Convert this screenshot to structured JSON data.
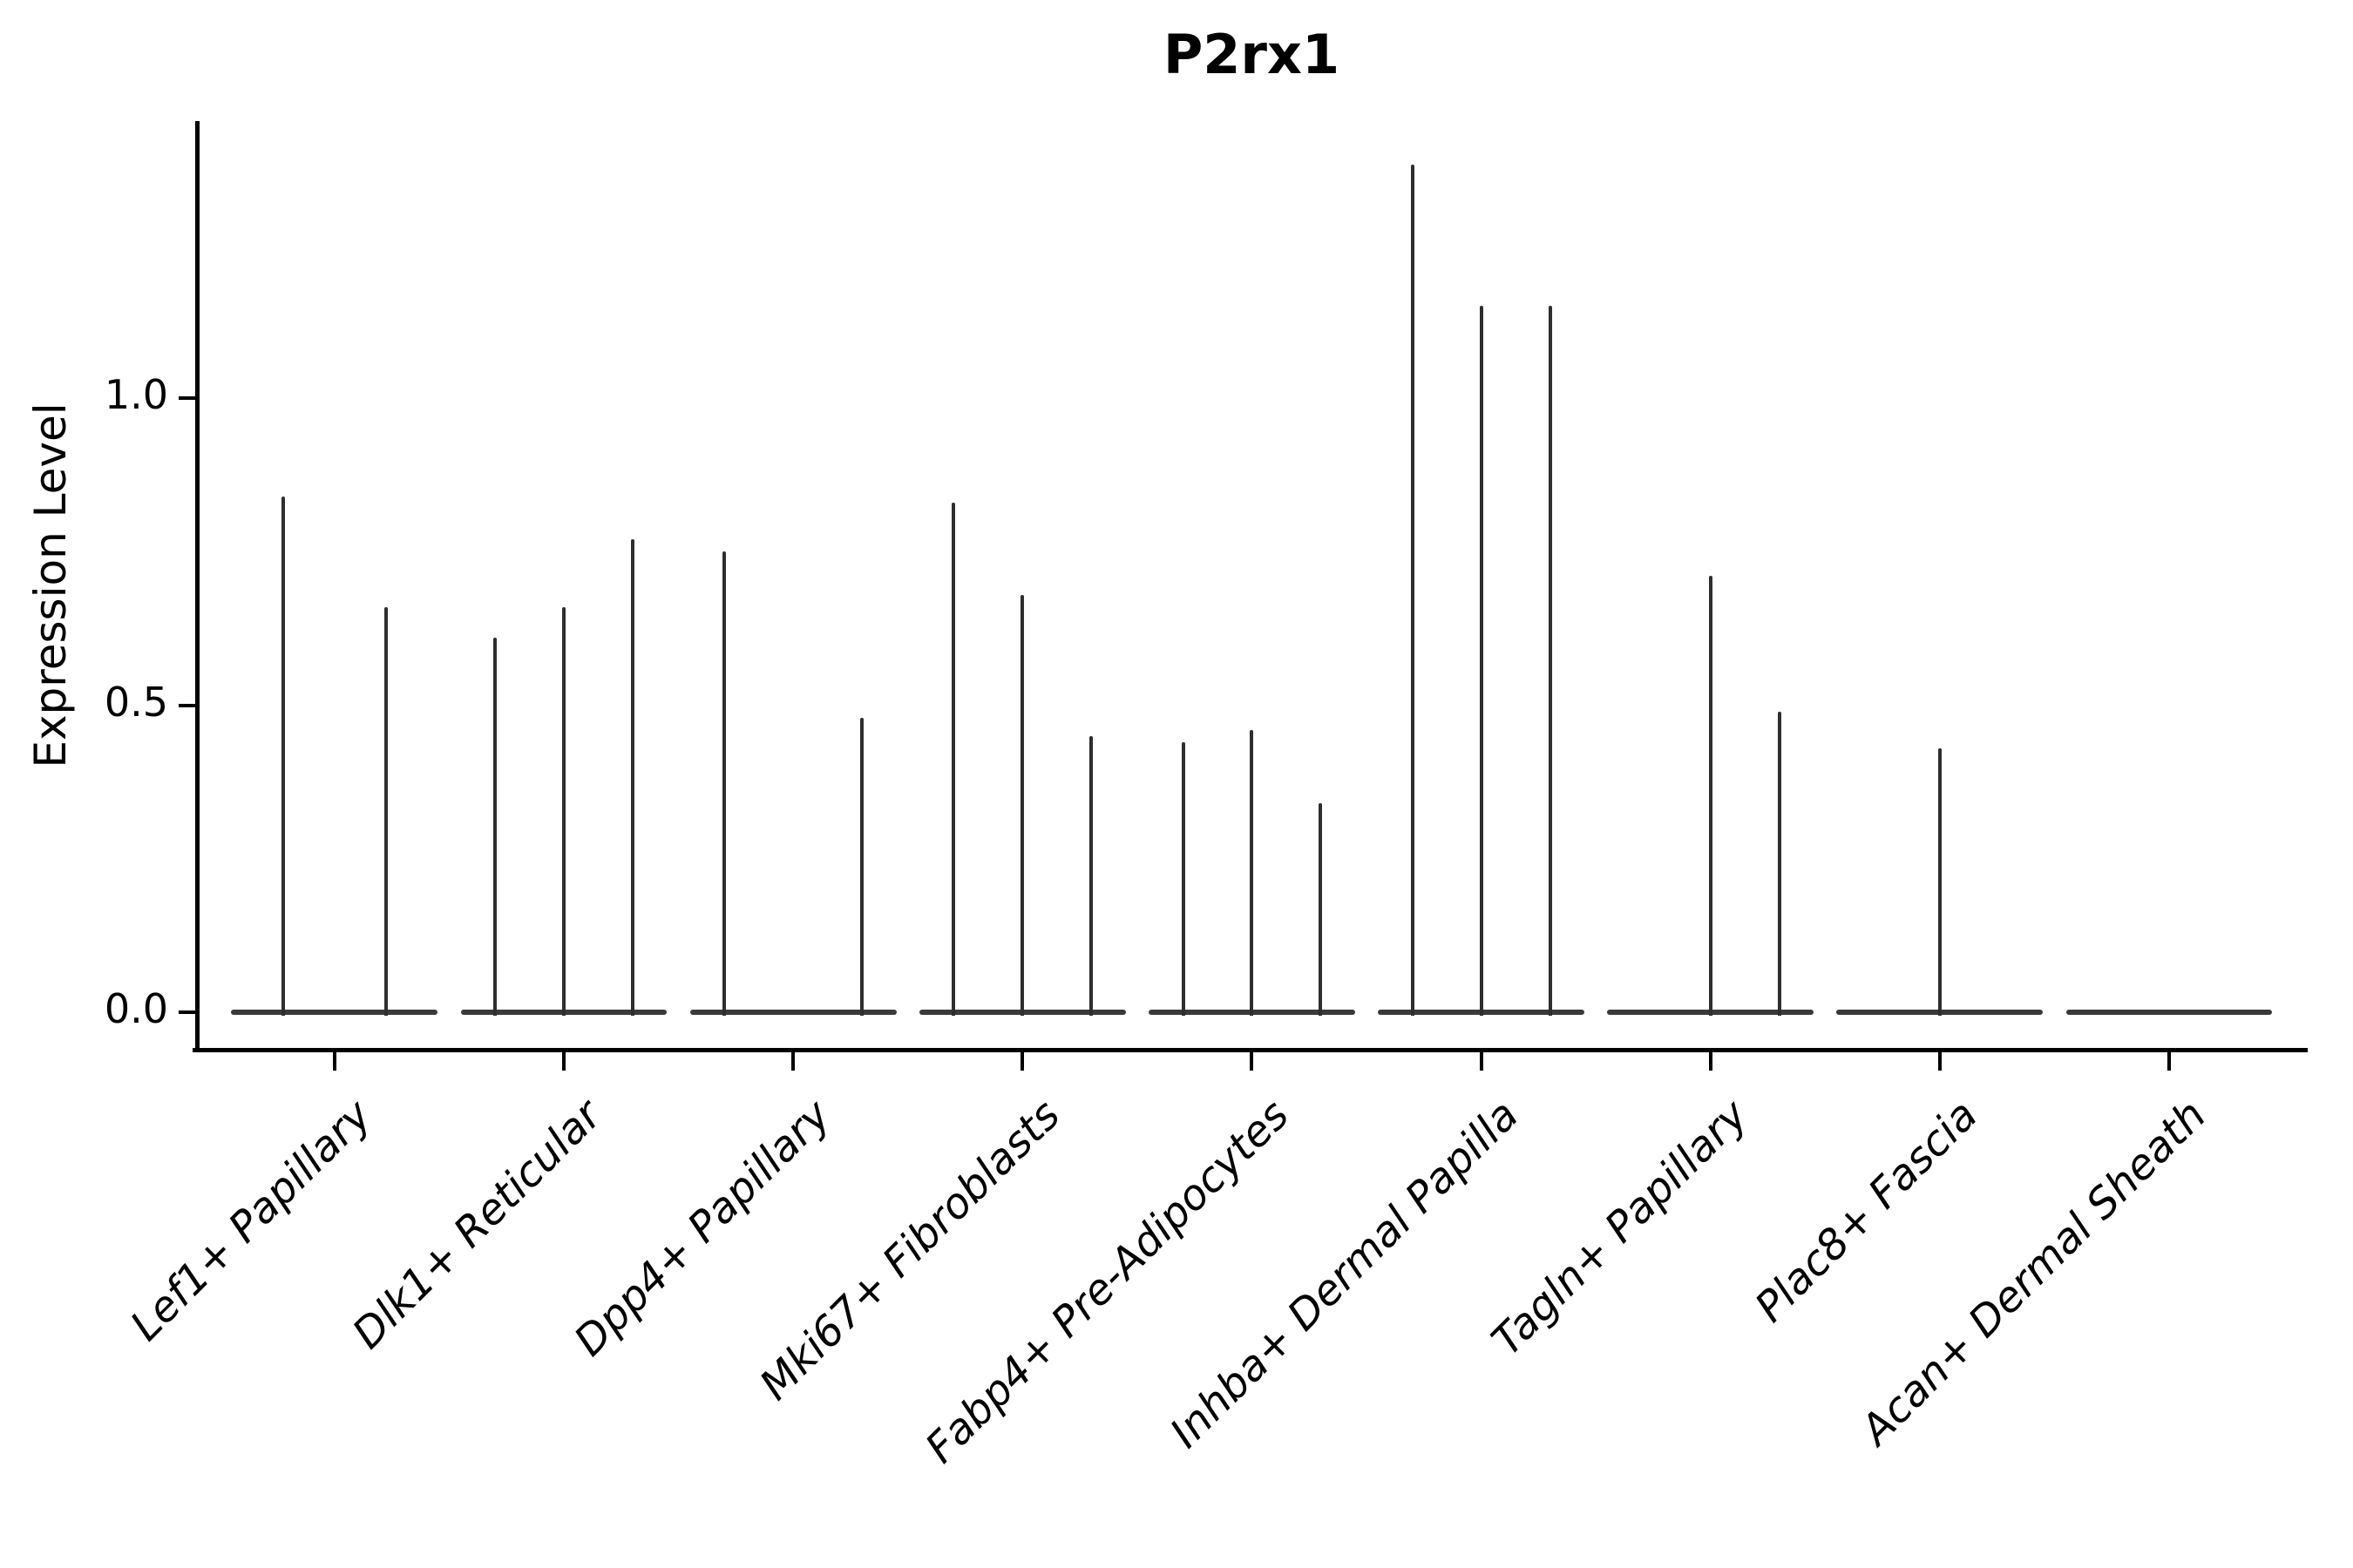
{
  "chart_data": {
    "type": "violin",
    "title": "P2rx1",
    "xlabel": "",
    "ylabel": "Expression Level",
    "ylim": [
      -0.06,
      1.45
    ],
    "yticks": [
      0.0,
      0.5,
      1.0
    ],
    "ytick_labels": [
      "0.0",
      "0.5",
      "1.0"
    ],
    "grid": false,
    "legend_position": "none",
    "line_color": "#2e2e2e",
    "group_total_width": 0.9,
    "categories": [
      "Lef1+ Papillary",
      "Dlk1+ Reticular",
      "Dpp4+ Papillary",
      "Mki67+ Fibroblasts",
      "Fabp4+ Pre-Adipocytes",
      "Inhba+ Dermal Papilla",
      "Tagln+ Papillary",
      "Plac8+ Fascia",
      "Acan+ Dermal Sheath"
    ],
    "groups": [
      {
        "category": "Lef1+ Papillary",
        "violins": [
          {
            "offset": -0.225,
            "max": 0.84
          },
          {
            "offset": 0.225,
            "max": 0.66
          }
        ]
      },
      {
        "category": "Dlk1+ Reticular",
        "violins": [
          {
            "offset": -0.3,
            "max": 0.61
          },
          {
            "offset": 0.0,
            "max": 0.66
          },
          {
            "offset": 0.3,
            "max": 0.77
          }
        ]
      },
      {
        "category": "Dpp4+ Papillary",
        "violins": [
          {
            "offset": -0.3,
            "max": 0.75
          },
          {
            "offset": 0.0,
            "max": 0.0
          },
          {
            "offset": 0.3,
            "max": 0.48
          }
        ]
      },
      {
        "category": "Mki67+ Fibroblasts",
        "violins": [
          {
            "offset": -0.3,
            "max": 0.83
          },
          {
            "offset": 0.0,
            "max": 0.68
          },
          {
            "offset": 0.3,
            "max": 0.45
          }
        ]
      },
      {
        "category": "Fabp4+ Pre-Adipocytes",
        "violins": [
          {
            "offset": -0.3,
            "max": 0.44
          },
          {
            "offset": 0.0,
            "max": 0.46
          },
          {
            "offset": 0.3,
            "max": 0.34
          }
        ]
      },
      {
        "category": "Inhba+ Dermal Papilla",
        "violins": [
          {
            "offset": -0.3,
            "max": 1.38
          },
          {
            "offset": 0.0,
            "max": 1.15
          },
          {
            "offset": 0.3,
            "max": 1.15
          }
        ]
      },
      {
        "category": "Tagln+ Papillary",
        "violins": [
          {
            "offset": 0.0,
            "max": 0.71
          },
          {
            "offset": 0.3,
            "max": 0.49
          }
        ]
      },
      {
        "category": "Plac8+ Fascia",
        "violins": [
          {
            "offset": 0.0,
            "max": 0.43
          }
        ]
      },
      {
        "category": "Acan+ Dermal Sheath",
        "violins": [
          {
            "offset": 0.0,
            "max": 0.0
          }
        ]
      }
    ]
  }
}
